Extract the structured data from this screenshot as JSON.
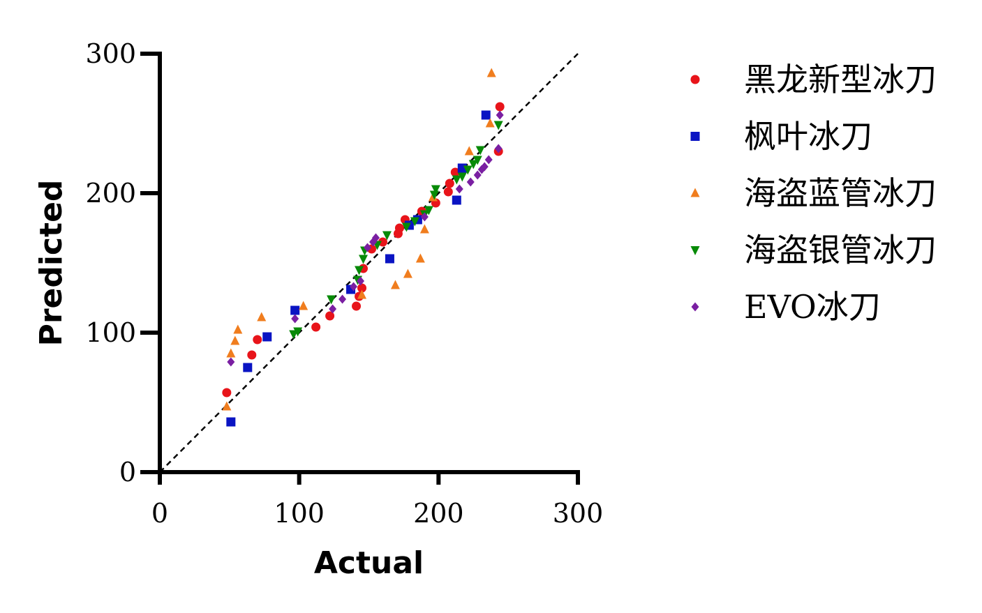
{
  "chart_data": {
    "type": "scatter",
    "xlabel": "Actual",
    "ylabel": "Predicted",
    "xlim": [
      0,
      300
    ],
    "ylim": [
      0,
      300
    ],
    "x_ticks": [
      "0",
      "100",
      "200",
      "300"
    ],
    "y_ticks": [
      "0",
      "100",
      "200",
      "300"
    ],
    "reference_line": "y = x (dashed)",
    "grid": false,
    "legend_position": "right",
    "series": [
      {
        "name": "黑龙新型冰刀",
        "color": "#e8141a",
        "marker": "circle",
        "points": [
          [
            48,
            57
          ],
          [
            66,
            84
          ],
          [
            70,
            95
          ],
          [
            112,
            104
          ],
          [
            122,
            112
          ],
          [
            141,
            119
          ],
          [
            143,
            126
          ],
          [
            145,
            132
          ],
          [
            146,
            146
          ],
          [
            152,
            160
          ],
          [
            160,
            165
          ],
          [
            171,
            171
          ],
          [
            172,
            175
          ],
          [
            176,
            181
          ],
          [
            188,
            187
          ],
          [
            198,
            193
          ],
          [
            207,
            201
          ],
          [
            208,
            207
          ],
          [
            212,
            215
          ],
          [
            243,
            230
          ],
          [
            244,
            262
          ]
        ]
      },
      {
        "name": "枫叶冰刀",
        "color": "#0a14c3",
        "marker": "square",
        "points": [
          [
            51,
            36
          ],
          [
            63,
            75
          ],
          [
            77,
            97
          ],
          [
            97,
            116
          ],
          [
            137,
            131
          ],
          [
            165,
            153
          ],
          [
            179,
            177
          ],
          [
            185,
            181
          ],
          [
            213,
            195
          ],
          [
            217,
            218
          ],
          [
            234,
            256
          ]
        ]
      },
      {
        "name": "海盗蓝管冰刀",
        "color": "#f07d1e",
        "marker": "triangle-up",
        "points": [
          [
            48,
            47
          ],
          [
            51,
            85
          ],
          [
            54,
            94
          ],
          [
            56,
            102
          ],
          [
            73,
            111
          ],
          [
            103,
            119
          ],
          [
            145,
            127
          ],
          [
            169,
            134
          ],
          [
            178,
            142
          ],
          [
            187,
            153
          ],
          [
            190,
            174
          ],
          [
            196,
            197
          ],
          [
            222,
            230
          ],
          [
            237,
            250
          ],
          [
            238,
            286
          ]
        ]
      },
      {
        "name": "海盗银管冰刀",
        "color": "#078a07",
        "marker": "triangle-down",
        "points": [
          [
            96,
            99
          ],
          [
            99,
            101
          ],
          [
            123,
            124
          ],
          [
            142,
            138
          ],
          [
            143,
            145
          ],
          [
            146,
            153
          ],
          [
            147,
            159
          ],
          [
            156,
            163
          ],
          [
            163,
            170
          ],
          [
            177,
            176
          ],
          [
            183,
            180
          ],
          [
            190,
            185
          ],
          [
            193,
            188
          ],
          [
            197,
            199
          ],
          [
            198,
            203
          ],
          [
            213,
            210
          ],
          [
            217,
            212
          ],
          [
            221,
            217
          ],
          [
            225,
            221
          ],
          [
            228,
            224
          ],
          [
            230,
            231
          ],
          [
            243,
            249
          ]
        ]
      },
      {
        "name": "EVO冰刀",
        "color": "#7a1fa2",
        "marker": "diamond",
        "points": [
          [
            51,
            79
          ],
          [
            97,
            110
          ],
          [
            124,
            117
          ],
          [
            131,
            124
          ],
          [
            139,
            133
          ],
          [
            144,
            137
          ],
          [
            149,
            161
          ],
          [
            153,
            165
          ],
          [
            155,
            168
          ],
          [
            190,
            183
          ],
          [
            215,
            203
          ],
          [
            223,
            208
          ],
          [
            228,
            213
          ],
          [
            231,
            217
          ],
          [
            233,
            219
          ],
          [
            236,
            224
          ],
          [
            243,
            232
          ],
          [
            244,
            256
          ]
        ]
      }
    ]
  }
}
